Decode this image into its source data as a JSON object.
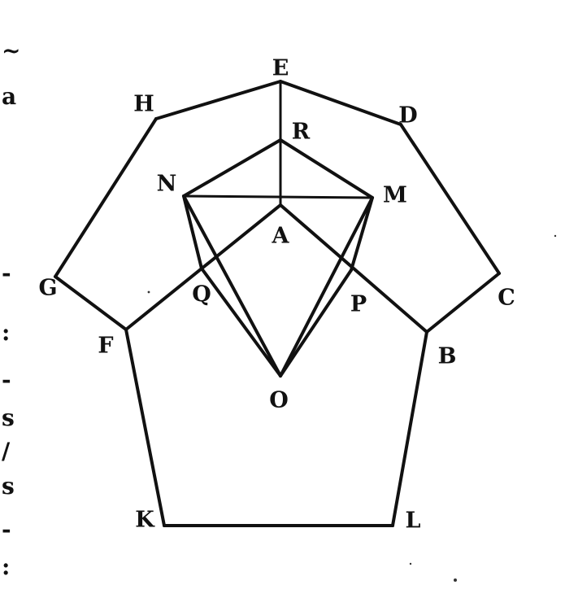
{
  "figure": {
    "points": [
      {
        "id": "E",
        "label": "E"
      },
      {
        "id": "H",
        "label": "H"
      },
      {
        "id": "D",
        "label": "D"
      },
      {
        "id": "R",
        "label": "R"
      },
      {
        "id": "N",
        "label": "N"
      },
      {
        "id": "M",
        "label": "M"
      },
      {
        "id": "A",
        "label": "A"
      },
      {
        "id": "G",
        "label": "G"
      },
      {
        "id": "C",
        "label": "C"
      },
      {
        "id": "Q",
        "label": "Q"
      },
      {
        "id": "P",
        "label": "P"
      },
      {
        "id": "F",
        "label": "F"
      },
      {
        "id": "B",
        "label": "B"
      },
      {
        "id": "O",
        "label": "O"
      },
      {
        "id": "K",
        "label": "K"
      },
      {
        "id": "L",
        "label": "L"
      }
    ],
    "segments": [
      [
        "H",
        "E"
      ],
      [
        "E",
        "D"
      ],
      [
        "D",
        "C"
      ],
      [
        "C",
        "B"
      ],
      [
        "B",
        "L"
      ],
      [
        "L",
        "K"
      ],
      [
        "K",
        "F"
      ],
      [
        "F",
        "G"
      ],
      [
        "G",
        "H"
      ],
      [
        "E",
        "R"
      ],
      [
        "R",
        "N"
      ],
      [
        "R",
        "M"
      ],
      [
        "R",
        "A"
      ],
      [
        "N",
        "M"
      ],
      [
        "N",
        "O"
      ],
      [
        "M",
        "O"
      ],
      [
        "N",
        "Q"
      ],
      [
        "Q",
        "O"
      ],
      [
        "M",
        "P"
      ],
      [
        "P",
        "O"
      ],
      [
        "A",
        "F"
      ],
      [
        "A",
        "B"
      ]
    ]
  },
  "margin_text": [
    "~",
    "a",
    "-",
    ":",
    "-",
    "s",
    "/",
    "s",
    "-",
    ":"
  ]
}
